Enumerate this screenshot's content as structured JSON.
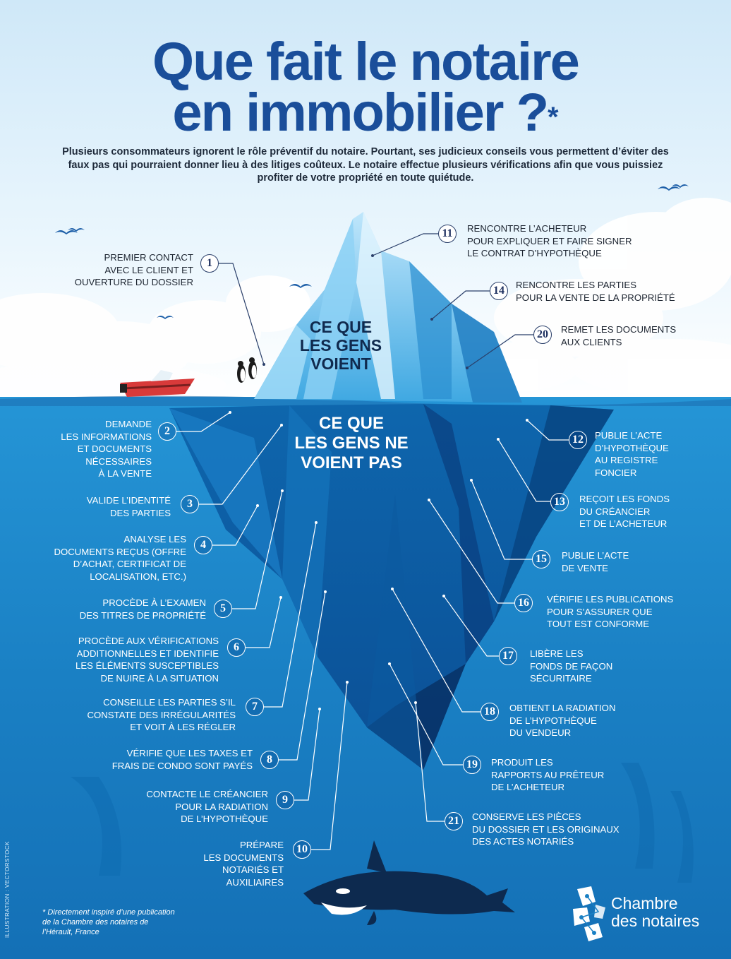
{
  "title_line1": "Que fait le notaire",
  "title_line2": "en immobilier ?",
  "title_asterisk": "*",
  "intro": "Plusieurs consommateurs ignorent le rôle préventif du notaire. Pourtant, ses judicieux conseils vous permettent d’éviter des faux pas qui pourraient donner lieu à des litiges coûteux. Le notaire effectue plusieurs vérifications afin que vous puissiez profiter de votre propriété en toute quiétude.",
  "seen_label": "CE QUE\nLES GENS\nVOIENT",
  "unseen_label": "CE QUE\nLES GENS NE\nVOIENT PAS",
  "steps": [
    {
      "n": "1",
      "text": "PREMIER CONTACT\nAVEC LE CLIENT ET\nOUVERTURE DU DOSSIER"
    },
    {
      "n": "2",
      "text": "DEMANDE\nLES INFORMATIONS\nET DOCUMENTS\nNÉCESSAIRES\nÀ LA VENTE"
    },
    {
      "n": "3",
      "text": "VALIDE L’IDENTITÉ\nDES PARTIES"
    },
    {
      "n": "4",
      "text": "ANALYSE LES\nDOCUMENTS REÇUS (OFFRE\nD’ACHAT, CERTIFICAT DE\nLOCALISATION, ETC.)"
    },
    {
      "n": "5",
      "text": "PROCÈDE À L’EXAMEN\nDES TITRES DE PROPRIÉTÉ"
    },
    {
      "n": "6",
      "text": "PROCÈDE AUX VÉRIFICATIONS\nADDITIONNELLES ET IDENTIFIE\nLES ÉLÉMENTS SUSCEPTIBLES\nDE NUIRE À LA SITUATION"
    },
    {
      "n": "7",
      "text": "CONSEILLE LES PARTIES S’IL\nCONSTATE DES IRRÉGULARITÉS\nET VOIT À LES RÉGLER"
    },
    {
      "n": "8",
      "text": "VÉRIFIE QUE LES TAXES ET\nFRAIS DE CONDO SONT PAYÉS"
    },
    {
      "n": "9",
      "text": "CONTACTE LE CRÉANCIER\nPOUR LA RADIATION\nDE L’HYPOTHÈQUE"
    },
    {
      "n": "10",
      "text": "PRÉPARE\nLES DOCUMENTS\nNOTARIÉS ET\nAUXILIAIRES"
    },
    {
      "n": "11",
      "text": "RENCONTRE L’ACHETEUR\nPOUR EXPLIQUER ET FAIRE SIGNER\nLE CONTRAT D’HYPOTHÈQUE"
    },
    {
      "n": "12",
      "text": "PUBLIE L’ACTE\nD’HYPOTHÈQUE\nAU REGISTRE\nFONCIER"
    },
    {
      "n": "13",
      "text": "REÇOIT LES FONDS\nDU CRÉANCIER\nET DE L’ACHETEUR"
    },
    {
      "n": "14",
      "text": "RENCONTRE LES PARTIES\nPOUR LA VENTE DE LA PROPRIÉTÉ"
    },
    {
      "n": "15",
      "text": "PUBLIE L’ACTE\nDE VENTE"
    },
    {
      "n": "16",
      "text": "VÉRIFIE LES PUBLICATIONS\nPOUR S’ASSURER QUE\nTOUT EST CONFORME"
    },
    {
      "n": "17",
      "text": "LIBÈRE LES\nFONDS DE FAÇON\nSÉCURITAIRE"
    },
    {
      "n": "18",
      "text": "OBTIENT LA RADIATION\nDE L’HYPOTHÈQUE\nDU VENDEUR"
    },
    {
      "n": "19",
      "text": "PRODUIT LES\nRAPPORTS AU PRÊTEUR\nDE L’ACHETEUR"
    },
    {
      "n": "20",
      "text": "REMET LES DOCUMENTS\nAUX CLIENTS"
    },
    {
      "n": "21",
      "text": "CONSERVE LES PIÈCES\nDU DOSSIER ET LES ORIGINAUX\nDES ACTES NOTARIÉS"
    }
  ],
  "credit": "ILLUSTRATION : VECTORSTOCK",
  "footnote": "* Directement inspiré d’une publication de la Chambre des notaires de l’Hérault, France",
  "logo_line1": "Chambre",
  "logo_line2": "des notaires",
  "colors": {
    "title": "#1a4e9a",
    "sky": "#dcefff",
    "ocean": "#1a80c4",
    "deep_ocean": "#0a4d93",
    "boat": "#d83a3a"
  },
  "icons": [
    "bird-icon",
    "penguin-icon",
    "boat-icon",
    "orca-icon",
    "iceberg-illustration",
    "chambre-logo-icon"
  ]
}
